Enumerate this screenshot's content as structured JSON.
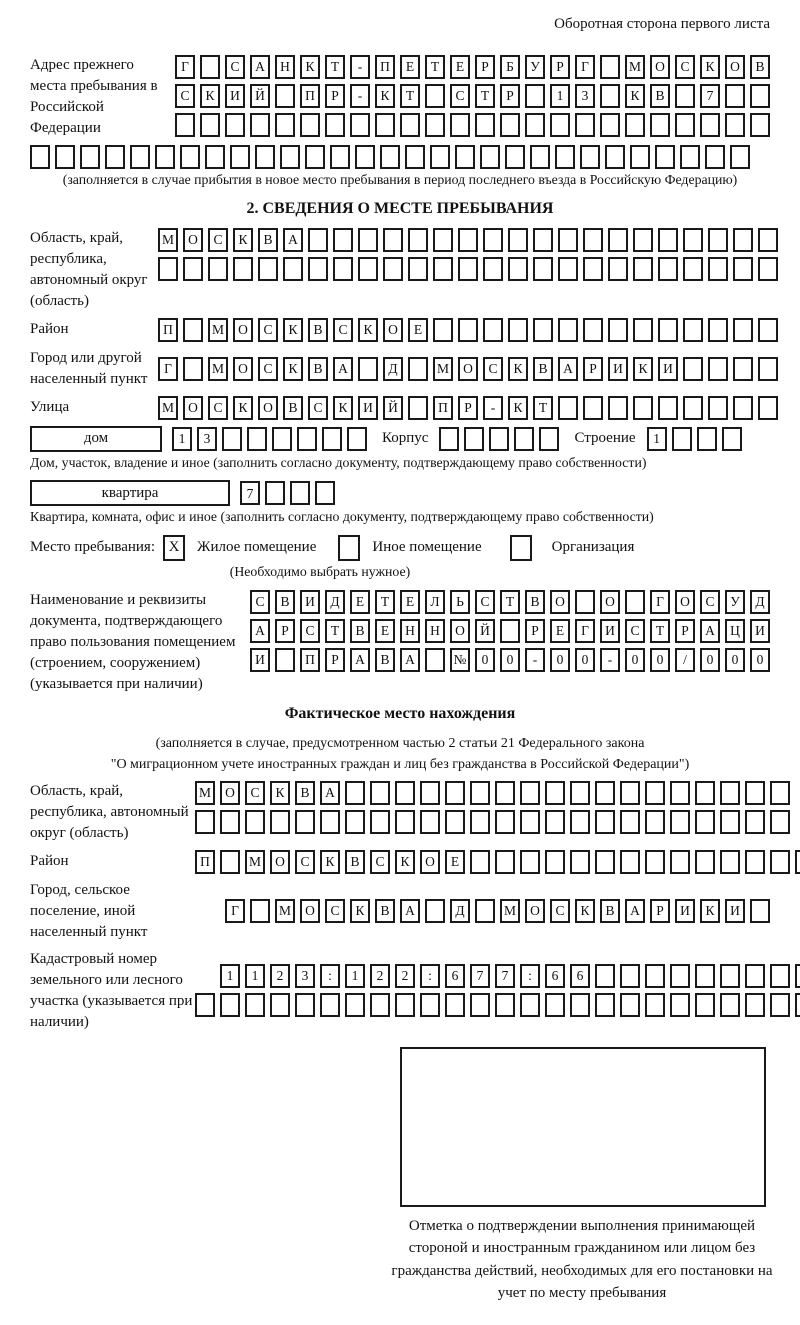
{
  "header": {
    "note": "Оборотная сторона первого листа"
  },
  "prev_address": {
    "label": "Адрес прежнего места пребывания в Российской Федерации",
    "rows": [
      {
        "chars": "Г САНКТ-ПЕТЕРБУРГ МОСКОВ",
        "count": 24
      },
      {
        "chars": "СКИЙ ПР-КТ СТР 13 КВ 7",
        "count": 24
      },
      {
        "chars": "",
        "count": 24
      },
      {
        "chars": "",
        "count": 29
      }
    ],
    "note": "(заполняется в случае прибытия в новое место пребывания в период последнего въезда в Российскую Федерацию)"
  },
  "section2": {
    "title": "2. СВЕДЕНИЯ О МЕСТЕ ПРЕБЫВАНИЯ",
    "oblast": {
      "label": "Область, край, республика, автономный округ (область)",
      "rows": [
        {
          "chars": "МОСКВА",
          "count": 25
        },
        {
          "chars": "",
          "count": 25
        }
      ]
    },
    "raion": {
      "label": "Район",
      "row": {
        "chars": "П МОСКВСКОЕ",
        "count": 25
      }
    },
    "gorod": {
      "label": "Город или другой населенный пункт",
      "row": {
        "chars": "Г МОСКВА Д МОСКВАРИКИ",
        "count": 25
      }
    },
    "ulitsa": {
      "label": "Улица",
      "row": {
        "chars": "МОСКОВСКИЙ ПР-КТ",
        "count": 25
      }
    },
    "dom": {
      "box_label": "дом",
      "row": {
        "chars": "13",
        "count": 8
      },
      "korpus_label": "Корпус",
      "korpus_row": {
        "chars": "",
        "count": 5
      },
      "stroenie_label": "Строение",
      "stroenie_row": {
        "chars": "1",
        "count": 4
      },
      "note": "Дом, участок, владение и иное (заполнить согласно документу, подтверждающему право собственности)"
    },
    "kvartira": {
      "box_label": "квартира",
      "row": {
        "chars": "7",
        "count": 4
      },
      "note": "Квартира, комната, офис и иное (заполнить согласно документу, подтверждающему право собственности)"
    },
    "stay_type": {
      "label": "Место пребывания:",
      "options": [
        {
          "mark": "X",
          "label": "Жилое помещение"
        },
        {
          "mark": "",
          "label": "Иное помещение"
        },
        {
          "mark": "",
          "label": "Организация"
        }
      ],
      "note": "(Необходимо выбрать нужное)"
    },
    "document": {
      "label": "Наименование и реквизиты документа, подтверждающего право пользования помещением (строением, сооружением) (указывается при наличии)",
      "rows": [
        {
          "chars": "СВИДЕТЕЛЬСТВО О ГОСУД",
          "count": 21
        },
        {
          "chars": "АРСТВЕННОЙ РЕГИСТРАЦИ",
          "count": 21
        },
        {
          "chars": "И ПРАВА №00-00-00/000",
          "count": 21
        }
      ]
    }
  },
  "fact_location": {
    "title": "Фактическое место нахождения",
    "note_line1": "(заполняется в случае, предусмотренном частью 2 статьи 21 Федерального закона",
    "note_line2": "\"О миграционном учете иностранных граждан и лиц без гражданства в Российской Федерации\")",
    "oblast": {
      "label": "Область, край, республика, автономный округ (область)",
      "rows": [
        {
          "chars": "МОСКВА",
          "count": 24
        },
        {
          "chars": "",
          "count": 24
        }
      ]
    },
    "raion": {
      "label": "Район",
      "row": {
        "chars": "П МОСКВСКОЕ",
        "count": 25
      }
    },
    "gorod": {
      "label": "Город, сельское поселение, иной населенный пункт",
      "row": {
        "chars": "Г МОСКВА Д МОСКВАРИКИ",
        "count": 22
      }
    },
    "kadastr": {
      "label": "Кадастровый номер земельного или лесного участка (указывается при наличии)",
      "rows": [
        {
          "chars": "1123:122:677:66",
          "count": 24
        },
        {
          "chars": "",
          "count": 25
        }
      ]
    }
  },
  "stamp": {
    "caption": "Отметка о подтверждении выполнения принимающей стороной и иностранным гражданином или лицом без гражданства действий, необходимых для его постановки на учет по месту пребывания"
  },
  "colors": {
    "ink": "#1a1a1a",
    "paper": "#ffffff"
  }
}
